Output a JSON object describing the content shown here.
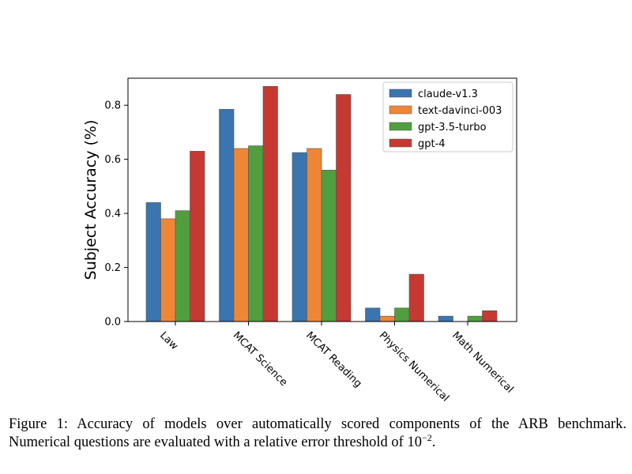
{
  "chart_data": {
    "type": "bar",
    "title": "",
    "xlabel": "",
    "ylabel": "Subject Accuracy (%)",
    "ylim": [
      0,
      0.9
    ],
    "yticks": [
      "0.0",
      "0.2",
      "0.4",
      "0.6",
      "0.8"
    ],
    "ytick_values": [
      0,
      0.2,
      0.4,
      0.6,
      0.8
    ],
    "categories": [
      "Law",
      "MCAT Science",
      "MCAT Reading",
      "Physics Numerical",
      "Math Numerical"
    ],
    "legend_position": "top-right",
    "grid": false,
    "series": [
      {
        "name": "claude-v1.3",
        "color": "#3a75b0",
        "values": [
          0.44,
          0.785,
          0.625,
          0.05,
          0.02
        ]
      },
      {
        "name": "text-davinci-003",
        "color": "#ef8636",
        "values": [
          0.38,
          0.64,
          0.64,
          0.02,
          0.0
        ]
      },
      {
        "name": "gpt-3.5-turbo",
        "color": "#519e3e",
        "values": [
          0.41,
          0.65,
          0.56,
          0.05,
          0.02
        ]
      },
      {
        "name": "gpt-4",
        "color": "#c53932",
        "values": [
          0.63,
          0.87,
          0.84,
          0.175,
          0.04
        ]
      }
    ]
  },
  "caption": {
    "line1": "Figure 1:  Accuracy of models over automatically scored components of the ARB benchmark.",
    "line2_prefix": "Numerical questions are evaluated with a relative error threshold of 10",
    "line2_exponent": "−2",
    "line2_suffix": "."
  }
}
